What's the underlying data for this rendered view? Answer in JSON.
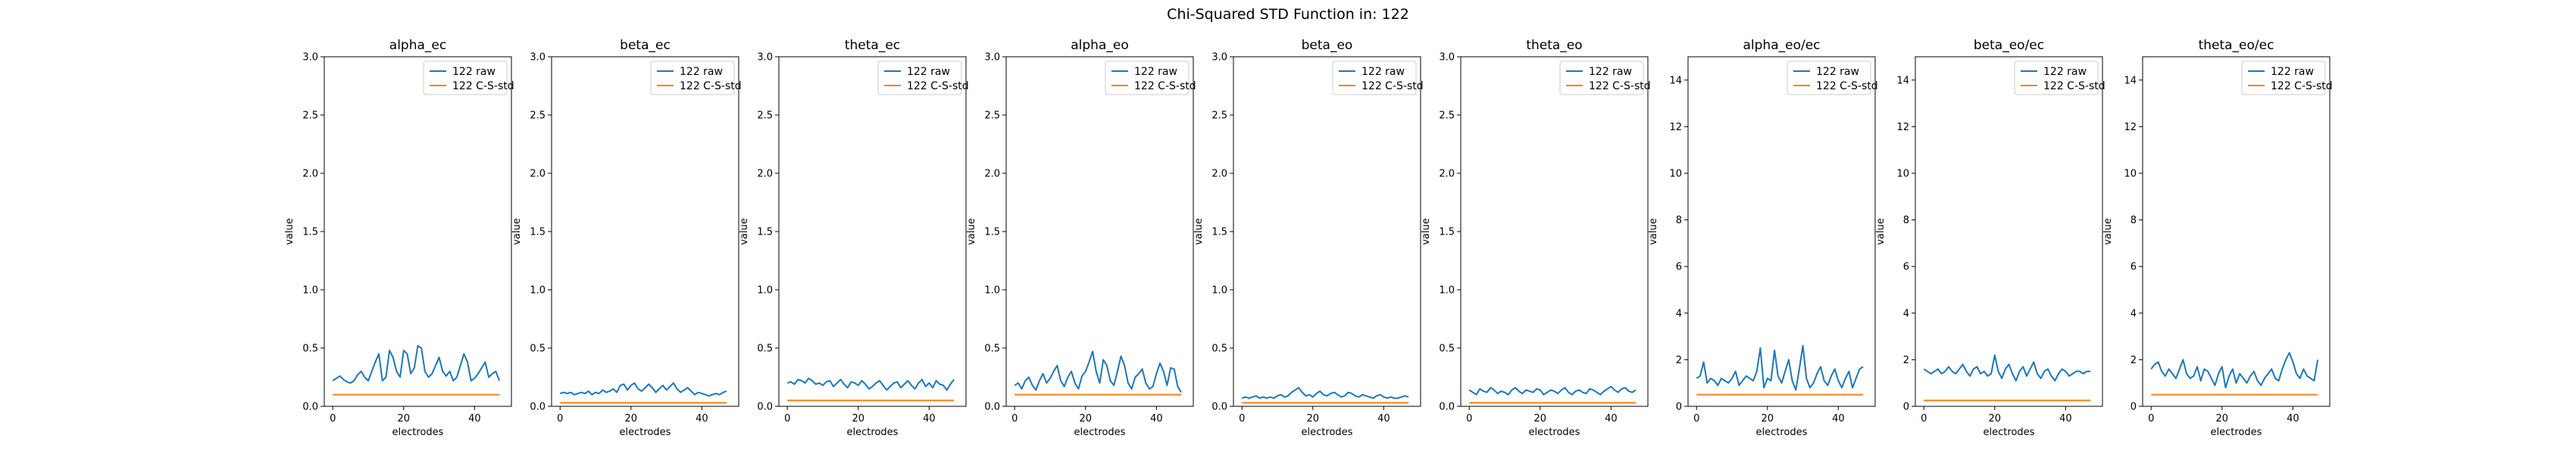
{
  "figure_title": "Chi-Squared STD Function in: 122",
  "colors": {
    "raw": "#1f77b4",
    "std": "#ff7f0e",
    "axes": "#000000",
    "legend_border": "#cccccc"
  },
  "chart_data": [
    {
      "type": "line",
      "title": "alpha_ec",
      "xlabel": "electrodes",
      "ylabel": "value",
      "xlim": [
        -2.4,
        50.4
      ],
      "ylim": [
        0,
        3
      ],
      "xticks": [
        0,
        20,
        40
      ],
      "yticks": [
        0,
        0.5,
        1,
        1.5,
        2,
        2.5,
        3
      ],
      "legend": "upper right",
      "series": [
        {
          "name": "122 raw",
          "values": [
            0.22,
            0.24,
            0.26,
            0.23,
            0.21,
            0.2,
            0.22,
            0.27,
            0.3,
            0.25,
            0.22,
            0.3,
            0.38,
            0.45,
            0.22,
            0.25,
            0.48,
            0.42,
            0.3,
            0.25,
            0.48,
            0.45,
            0.28,
            0.33,
            0.52,
            0.5,
            0.3,
            0.25,
            0.28,
            0.35,
            0.42,
            0.3,
            0.26,
            0.3,
            0.22,
            0.25,
            0.35,
            0.45,
            0.38,
            0.22,
            0.24,
            0.28,
            0.33,
            0.38,
            0.25,
            0.28,
            0.3,
            0.22
          ]
        },
        {
          "name": "122 C-S-std",
          "values": [
            0.1,
            0.1
          ]
        }
      ]
    },
    {
      "type": "line",
      "title": "beta_ec",
      "xlabel": "electrodes",
      "ylabel": "value",
      "xlim": [
        -2.4,
        50.4
      ],
      "ylim": [
        0,
        3
      ],
      "xticks": [
        0,
        20,
        40
      ],
      "yticks": [
        0,
        0.5,
        1,
        1.5,
        2,
        2.5,
        3
      ],
      "legend": "upper right",
      "series": [
        {
          "name": "122 raw",
          "values": [
            0.11,
            0.12,
            0.11,
            0.12,
            0.1,
            0.11,
            0.12,
            0.11,
            0.13,
            0.1,
            0.12,
            0.11,
            0.14,
            0.12,
            0.13,
            0.15,
            0.12,
            0.18,
            0.19,
            0.14,
            0.18,
            0.2,
            0.15,
            0.13,
            0.16,
            0.19,
            0.16,
            0.12,
            0.15,
            0.18,
            0.14,
            0.17,
            0.2,
            0.15,
            0.12,
            0.14,
            0.16,
            0.13,
            0.1,
            0.12,
            0.11,
            0.1,
            0.09,
            0.1,
            0.11,
            0.1,
            0.12,
            0.13
          ]
        },
        {
          "name": "122 C-S-std",
          "values": [
            0.03,
            0.03
          ]
        }
      ]
    },
    {
      "type": "line",
      "title": "theta_ec",
      "xlabel": "electrodes",
      "ylabel": "value",
      "xlim": [
        -2.4,
        50.4
      ],
      "ylim": [
        0,
        3
      ],
      "xticks": [
        0,
        20,
        40
      ],
      "yticks": [
        0,
        0.5,
        1,
        1.5,
        2,
        2.5,
        3
      ],
      "legend": "upper right",
      "series": [
        {
          "name": "122 raw",
          "values": [
            0.2,
            0.21,
            0.19,
            0.23,
            0.22,
            0.2,
            0.24,
            0.22,
            0.19,
            0.2,
            0.18,
            0.21,
            0.22,
            0.17,
            0.2,
            0.23,
            0.19,
            0.16,
            0.21,
            0.2,
            0.18,
            0.22,
            0.19,
            0.15,
            0.17,
            0.2,
            0.22,
            0.18,
            0.14,
            0.17,
            0.2,
            0.21,
            0.16,
            0.19,
            0.22,
            0.18,
            0.15,
            0.2,
            0.23,
            0.17,
            0.2,
            0.16,
            0.22,
            0.19,
            0.18,
            0.14,
            0.19,
            0.23
          ]
        },
        {
          "name": "122 C-S-std",
          "values": [
            0.05,
            0.05
          ]
        }
      ]
    },
    {
      "type": "line",
      "title": "alpha_eo",
      "xlabel": "electrodes",
      "ylabel": "value",
      "xlim": [
        -2.4,
        50.4
      ],
      "ylim": [
        0,
        3
      ],
      "xticks": [
        0,
        20,
        40
      ],
      "yticks": [
        0,
        0.5,
        1,
        1.5,
        2,
        2.5,
        3
      ],
      "legend": "upper right",
      "series": [
        {
          "name": "122 raw",
          "values": [
            0.18,
            0.2,
            0.15,
            0.22,
            0.25,
            0.18,
            0.14,
            0.22,
            0.28,
            0.2,
            0.24,
            0.3,
            0.35,
            0.22,
            0.17,
            0.25,
            0.3,
            0.2,
            0.15,
            0.26,
            0.3,
            0.38,
            0.47,
            0.3,
            0.2,
            0.4,
            0.35,
            0.22,
            0.18,
            0.3,
            0.43,
            0.35,
            0.2,
            0.15,
            0.25,
            0.28,
            0.32,
            0.2,
            0.15,
            0.17,
            0.28,
            0.37,
            0.3,
            0.18,
            0.33,
            0.32,
            0.17,
            0.12
          ]
        },
        {
          "name": "122 C-S-std",
          "values": [
            0.1,
            0.1
          ]
        }
      ]
    },
    {
      "type": "line",
      "title": "beta_eo",
      "xlabel": "electrodes",
      "ylabel": "value",
      "xlim": [
        -2.4,
        50.4
      ],
      "ylim": [
        0,
        3
      ],
      "xticks": [
        0,
        20,
        40
      ],
      "yticks": [
        0,
        0.5,
        1,
        1.5,
        2,
        2.5,
        3
      ],
      "legend": "upper right",
      "series": [
        {
          "name": "122 raw",
          "values": [
            0.07,
            0.08,
            0.07,
            0.08,
            0.09,
            0.07,
            0.08,
            0.07,
            0.08,
            0.07,
            0.09,
            0.1,
            0.08,
            0.09,
            0.12,
            0.14,
            0.16,
            0.12,
            0.09,
            0.1,
            0.08,
            0.11,
            0.13,
            0.1,
            0.09,
            0.11,
            0.12,
            0.1,
            0.08,
            0.09,
            0.12,
            0.11,
            0.09,
            0.08,
            0.1,
            0.09,
            0.08,
            0.07,
            0.09,
            0.1,
            0.08,
            0.07,
            0.08,
            0.07,
            0.07,
            0.08,
            0.09,
            0.08
          ]
        },
        {
          "name": "122 C-S-std",
          "values": [
            0.03,
            0.03
          ]
        }
      ]
    },
    {
      "type": "line",
      "title": "theta_eo",
      "xlabel": "electrodes",
      "ylabel": "value",
      "xlim": [
        -2.4,
        50.4
      ],
      "ylim": [
        0,
        3
      ],
      "xticks": [
        0,
        20,
        40
      ],
      "yticks": [
        0,
        0.5,
        1,
        1.5,
        2,
        2.5,
        3
      ],
      "legend": "upper right",
      "series": [
        {
          "name": "122 raw",
          "values": [
            0.14,
            0.12,
            0.1,
            0.15,
            0.13,
            0.12,
            0.16,
            0.14,
            0.11,
            0.13,
            0.12,
            0.1,
            0.14,
            0.16,
            0.13,
            0.11,
            0.14,
            0.13,
            0.12,
            0.15,
            0.14,
            0.1,
            0.12,
            0.14,
            0.13,
            0.11,
            0.14,
            0.16,
            0.12,
            0.1,
            0.13,
            0.14,
            0.12,
            0.11,
            0.15,
            0.14,
            0.12,
            0.1,
            0.13,
            0.15,
            0.17,
            0.14,
            0.12,
            0.15,
            0.16,
            0.13,
            0.12,
            0.14
          ]
        },
        {
          "name": "122 C-S-std",
          "values": [
            0.03,
            0.03
          ]
        }
      ]
    },
    {
      "type": "line",
      "title": "alpha_eo/ec",
      "xlabel": "electrodes",
      "ylabel": "value",
      "xlim": [
        -2.4,
        50.4
      ],
      "ylim": [
        0,
        15
      ],
      "xticks": [
        0,
        20,
        40
      ],
      "yticks": [
        0,
        2,
        4,
        6,
        8,
        10,
        12,
        14
      ],
      "legend": "upper right",
      "series": [
        {
          "name": "122 raw",
          "values": [
            1.2,
            1.3,
            1.9,
            1.0,
            1.2,
            1.1,
            0.9,
            1.2,
            1.1,
            1.0,
            1.2,
            1.5,
            0.9,
            1.1,
            1.3,
            1.2,
            1.1,
            1.5,
            2.5,
            0.8,
            1.2,
            1.1,
            2.4,
            1.3,
            1.0,
            1.5,
            2.0,
            1.1,
            0.7,
            1.6,
            2.6,
            1.2,
            0.8,
            1.0,
            1.4,
            1.7,
            1.1,
            0.9,
            1.3,
            1.6,
            1.1,
            0.8,
            1.2,
            1.5,
            0.8,
            1.2,
            1.6,
            1.7
          ]
        },
        {
          "name": "122 C-S-std",
          "values": [
            0.5,
            0.5
          ]
        }
      ]
    },
    {
      "type": "line",
      "title": "beta_eo/ec",
      "xlabel": "electrodes",
      "ylabel": "value",
      "xlim": [
        -2.4,
        50.4
      ],
      "ylim": [
        0,
        15
      ],
      "xticks": [
        0,
        20,
        40
      ],
      "yticks": [
        0,
        2,
        4,
        6,
        8,
        10,
        12,
        14
      ],
      "legend": "upper right",
      "series": [
        {
          "name": "122 raw",
          "values": [
            1.6,
            1.5,
            1.4,
            1.5,
            1.6,
            1.4,
            1.5,
            1.7,
            1.5,
            1.4,
            1.6,
            1.8,
            1.5,
            1.3,
            1.6,
            1.7,
            1.4,
            1.5,
            1.3,
            1.4,
            2.2,
            1.5,
            1.2,
            1.6,
            1.8,
            1.4,
            1.1,
            1.5,
            1.7,
            1.3,
            1.6,
            1.9,
            1.4,
            1.2,
            1.5,
            1.6,
            1.3,
            1.1,
            1.4,
            1.6,
            1.5,
            1.3,
            1.4,
            1.5,
            1.5,
            1.4,
            1.5,
            1.5
          ]
        },
        {
          "name": "122 C-S-std",
          "values": [
            0.25,
            0.25
          ]
        }
      ]
    },
    {
      "type": "line",
      "title": "theta_eo/ec",
      "xlabel": "electrodes",
      "ylabel": "value",
      "xlim": [
        -2.4,
        50.4
      ],
      "ylim": [
        0,
        15
      ],
      "xticks": [
        0,
        20,
        40
      ],
      "yticks": [
        0,
        2,
        4,
        6,
        8,
        10,
        12,
        14
      ],
      "legend": "upper right",
      "series": [
        {
          "name": "122 raw",
          "values": [
            1.6,
            1.8,
            1.9,
            1.5,
            1.3,
            1.6,
            1.4,
            1.2,
            1.6,
            2.0,
            1.4,
            1.2,
            1.3,
            1.7,
            1.1,
            1.6,
            1.5,
            1.2,
            0.9,
            1.4,
            1.7,
            0.8,
            1.3,
            1.6,
            1.0,
            1.4,
            1.2,
            1.0,
            1.3,
            1.5,
            1.1,
            0.9,
            1.2,
            1.4,
            1.6,
            1.2,
            1.1,
            1.6,
            2.0,
            2.3,
            1.9,
            1.4,
            1.2,
            1.6,
            1.3,
            1.2,
            1.1,
            2.0
          ]
        },
        {
          "name": "122 C-S-std",
          "values": [
            0.5,
            0.5
          ]
        }
      ]
    }
  ]
}
